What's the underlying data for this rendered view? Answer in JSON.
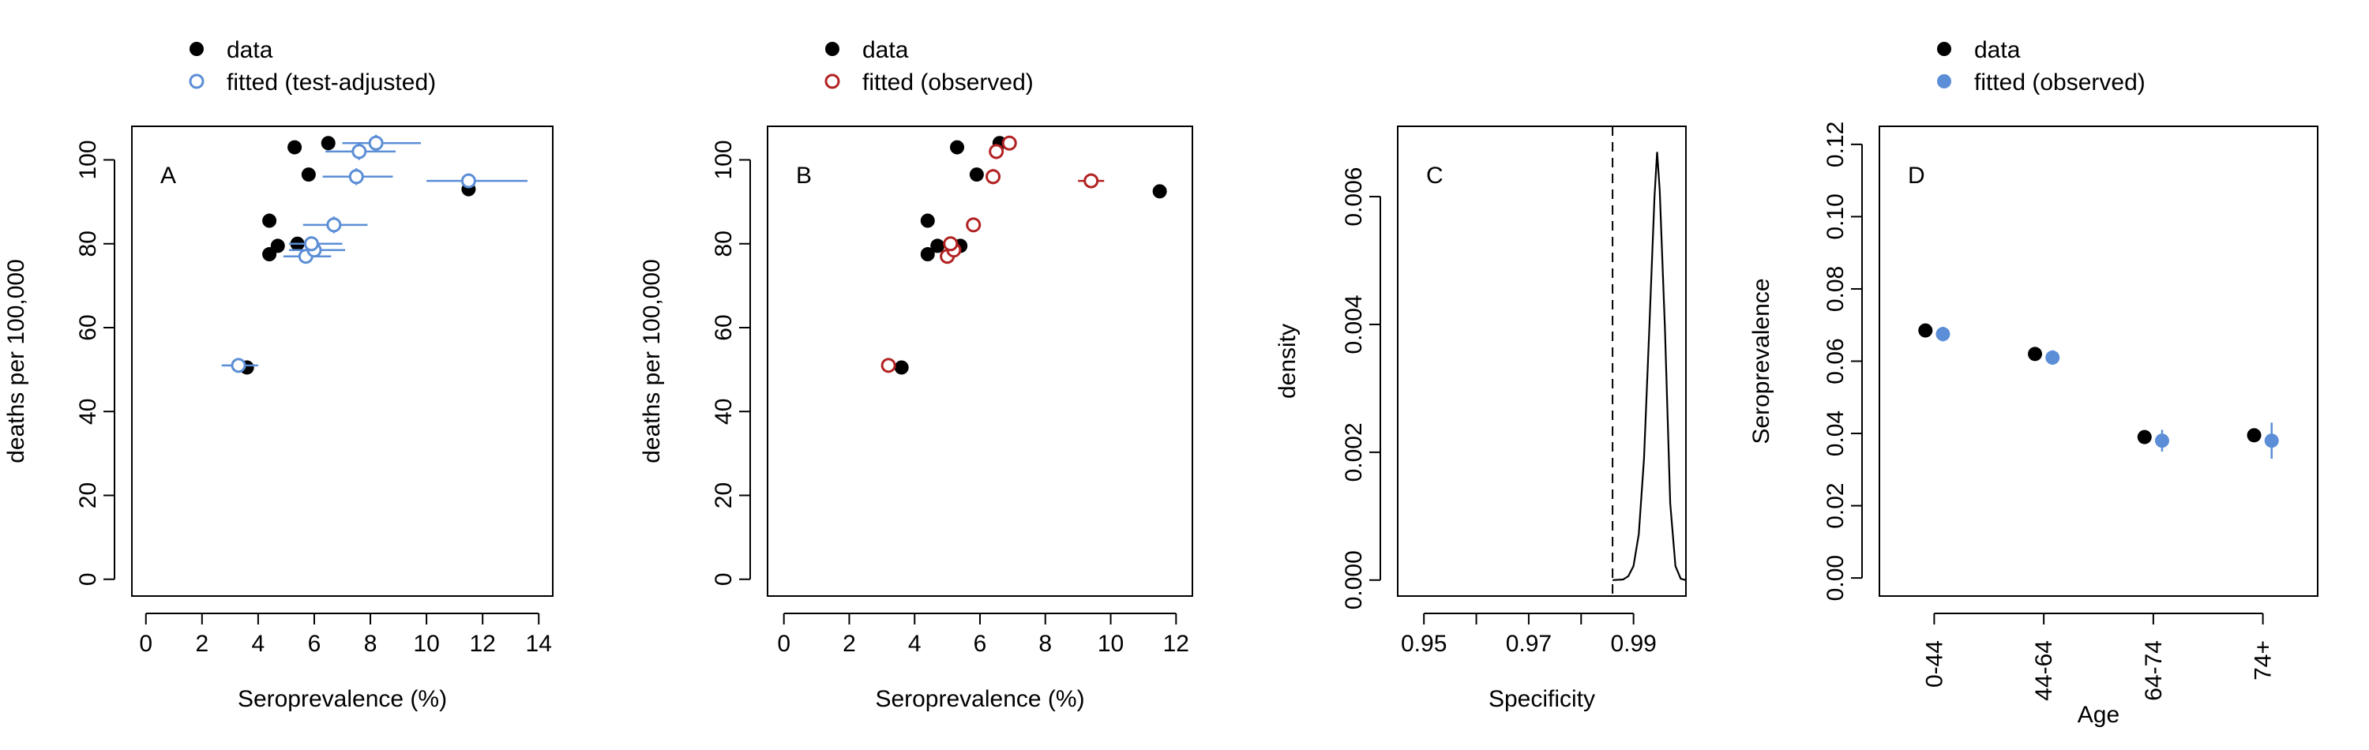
{
  "chart_data": [
    {
      "type": "scatter",
      "panel_label": "A",
      "xlabel": "Seroprevalence (%)",
      "ylabel": "deaths per 100,000",
      "xlim": [
        -0.5,
        14.5
      ],
      "ylim": [
        -4,
        108
      ],
      "xticks": [
        0,
        2,
        4,
        6,
        8,
        10,
        12,
        14
      ],
      "yticks": [
        0,
        20,
        40,
        60,
        80,
        100
      ],
      "grid": false,
      "legend_position": "top-left-above",
      "series": [
        {
          "name": "data",
          "marker": "filled-circle",
          "color": "#000000",
          "points": [
            {
              "x": 3.6,
              "y": 50.5
            },
            {
              "x": 4.4,
              "y": 85.5
            },
            {
              "x": 4.4,
              "y": 77.5
            },
            {
              "x": 4.7,
              "y": 79.5
            },
            {
              "x": 5.3,
              "y": 103
            },
            {
              "x": 5.4,
              "y": 80
            },
            {
              "x": 5.8,
              "y": 96.5
            },
            {
              "x": 6.5,
              "y": 104
            },
            {
              "x": 11.5,
              "y": 93
            }
          ]
        },
        {
          "name": "fitted (test-adjusted)",
          "marker": "open-circle",
          "color": "#5b8ed6",
          "points": [
            {
              "x": 3.3,
              "y": 51,
              "xerr": [
                2.7,
                4.0
              ],
              "yerr": [
                50,
                52
              ]
            },
            {
              "x": 5.7,
              "y": 77,
              "xerr": [
                4.9,
                6.6
              ],
              "yerr": [
                75.8,
                78.2
              ]
            },
            {
              "x": 6.0,
              "y": 78.5,
              "xerr": [
                5.1,
                7.1
              ],
              "yerr": [
                77.3,
                79.7
              ]
            },
            {
              "x": 5.9,
              "y": 80,
              "xerr": [
                5.1,
                7.0
              ],
              "yerr": [
                78.8,
                81.2
              ]
            },
            {
              "x": 6.7,
              "y": 84.5,
              "xerr": [
                5.6,
                7.9
              ],
              "yerr": [
                82.5,
                86.5
              ]
            },
            {
              "x": 7.5,
              "y": 96,
              "xerr": [
                6.3,
                8.8
              ],
              "yerr": [
                94,
                98
              ]
            },
            {
              "x": 7.6,
              "y": 102,
              "xerr": [
                6.4,
                8.9
              ],
              "yerr": [
                100,
                104
              ]
            },
            {
              "x": 8.2,
              "y": 104,
              "xerr": [
                7.0,
                9.8
              ],
              "yerr": [
                102,
                106
              ]
            },
            {
              "x": 11.5,
              "y": 95,
              "xerr": [
                10.0,
                13.6
              ],
              "yerr": [
                94,
                96
              ]
            }
          ]
        }
      ]
    },
    {
      "type": "scatter",
      "panel_label": "B",
      "xlabel": "Seroprevalence (%)",
      "ylabel": "deaths per 100,000",
      "xlim": [
        -0.5,
        12.5
      ],
      "ylim": [
        -4,
        108
      ],
      "xticks": [
        0,
        2,
        4,
        6,
        8,
        10,
        12
      ],
      "yticks": [
        0,
        20,
        40,
        60,
        80,
        100
      ],
      "grid": false,
      "legend_position": "top-left-above",
      "series": [
        {
          "name": "data",
          "marker": "filled-circle",
          "color": "#000000",
          "points": [
            {
              "x": 3.6,
              "y": 50.5
            },
            {
              "x": 4.4,
              "y": 85.5
            },
            {
              "x": 4.4,
              "y": 77.5
            },
            {
              "x": 4.7,
              "y": 79.5
            },
            {
              "x": 5.3,
              "y": 103
            },
            {
              "x": 5.4,
              "y": 79.5
            },
            {
              "x": 5.9,
              "y": 96.5
            },
            {
              "x": 6.6,
              "y": 104
            },
            {
              "x": 11.5,
              "y": 92.5
            }
          ]
        },
        {
          "name": "fitted (observed)",
          "marker": "open-circle",
          "color": "#b22222",
          "points": [
            {
              "x": 3.2,
              "y": 51,
              "xerr": [
                3.05,
                3.35
              ],
              "yerr": [
                49.8,
                52.2
              ]
            },
            {
              "x": 5.0,
              "y": 77,
              "xerr": [
                4.85,
                5.15
              ],
              "yerr": [
                75.8,
                78.2
              ]
            },
            {
              "x": 5.2,
              "y": 78.5,
              "xerr": [
                5.05,
                5.35
              ],
              "yerr": [
                77.3,
                79.7
              ]
            },
            {
              "x": 5.1,
              "y": 80,
              "xerr": [
                4.95,
                5.25
              ],
              "yerr": [
                78.8,
                81.2
              ]
            },
            {
              "x": 5.8,
              "y": 84.5,
              "xerr": [
                5.65,
                5.95
              ],
              "yerr": [
                83,
                86
              ]
            },
            {
              "x": 6.4,
              "y": 96,
              "xerr": [
                6.25,
                6.55
              ],
              "yerr": [
                94.2,
                97.8
              ]
            },
            {
              "x": 6.5,
              "y": 102,
              "xerr": [
                6.35,
                6.65
              ],
              "yerr": [
                100.2,
                103.8
              ]
            },
            {
              "x": 6.9,
              "y": 104,
              "xerr": [
                6.75,
                7.05
              ],
              "yerr": [
                102.4,
                105.6
              ]
            },
            {
              "x": 9.4,
              "y": 95,
              "xerr": [
                9.0,
                9.8
              ],
              "yerr": [
                94.2,
                95.8
              ]
            }
          ]
        }
      ]
    },
    {
      "type": "line",
      "panel_label": "C",
      "xlabel": "Specificity",
      "ylabel": "density",
      "xlim": [
        0.945,
        1.0
      ],
      "ylim": [
        -0.00025,
        0.0071
      ],
      "xticks": [
        0.95,
        0.96,
        0.97,
        0.98,
        0.99
      ],
      "xtick_labels": [
        "0.95",
        "",
        "0.97",
        "",
        "0.99"
      ],
      "yticks": [
        0.0,
        0.002,
        0.004,
        0.006
      ],
      "ytick_labels": [
        "0.000",
        "0.002",
        "0.004",
        "0.006"
      ],
      "grid": false,
      "vline": 0.986,
      "curve": {
        "points": [
          [
            0.986,
            0.0
          ],
          [
            0.988,
            1e-05
          ],
          [
            0.989,
            6e-05
          ],
          [
            0.99,
            0.00022
          ],
          [
            0.991,
            0.00072
          ],
          [
            0.992,
            0.0019
          ],
          [
            0.993,
            0.0039
          ],
          [
            0.994,
            0.006
          ],
          [
            0.9945,
            0.0067
          ],
          [
            0.995,
            0.0061
          ],
          [
            0.996,
            0.0039
          ],
          [
            0.997,
            0.0012
          ],
          [
            0.998,
            0.00022
          ],
          [
            0.999,
            2e-05
          ],
          [
            1.0,
            0.0
          ]
        ]
      }
    },
    {
      "type": "scatter",
      "panel_label": "D",
      "xlabel": "Age",
      "ylabel": "Seroprevalence",
      "categories": [
        "0-44",
        "44-64",
        "64-74",
        "74+"
      ],
      "xlim": [
        0.5,
        4.5
      ],
      "ylim": [
        -0.005,
        0.125
      ],
      "yticks": [
        0.0,
        0.02,
        0.04,
        0.06,
        0.08,
        0.1,
        0.12
      ],
      "ytick_labels": [
        "0.00",
        "0.02",
        "0.04",
        "0.06",
        "0.08",
        "0.10",
        "0.12"
      ],
      "grid": false,
      "legend_position": "top-left-above",
      "series": [
        {
          "name": "data",
          "marker": "filled-circle",
          "color": "#000000",
          "offset": -0.08,
          "values": [
            0.0685,
            0.062,
            0.039,
            0.0395
          ]
        },
        {
          "name": "fitted (observed)",
          "marker": "filled-circle",
          "color": "#5b8ed6",
          "offset": 0.08,
          "values": [
            0.0675,
            0.061,
            0.038,
            0.038
          ],
          "errors": [
            [
              0.0655,
              0.0695
            ],
            [
              0.059,
              0.063
            ],
            [
              0.035,
              0.041
            ],
            [
              0.033,
              0.043
            ]
          ]
        }
      ]
    }
  ]
}
